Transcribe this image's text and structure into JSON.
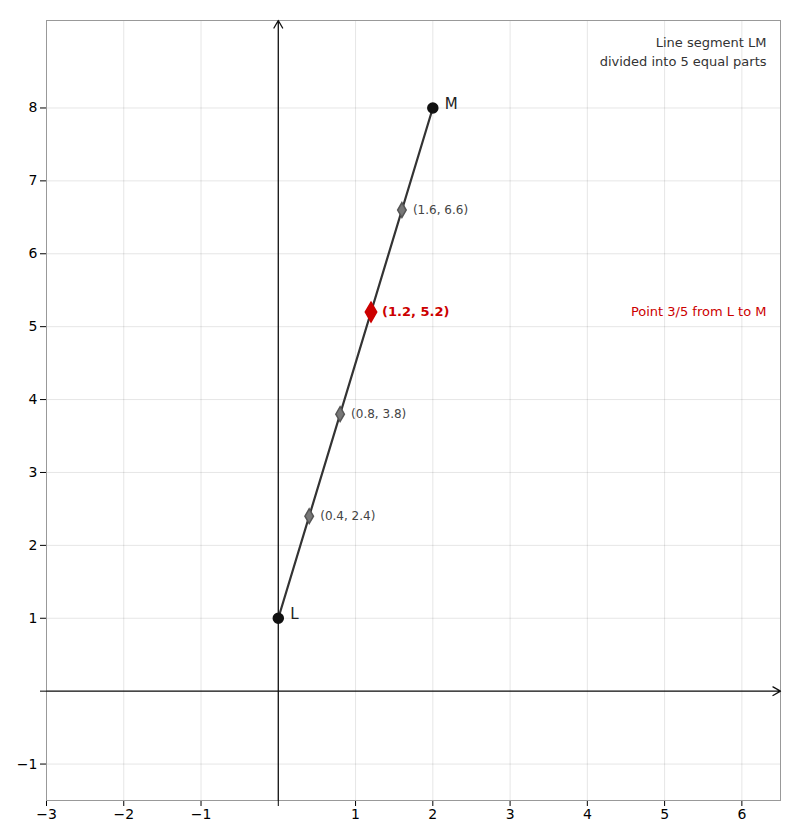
{
  "chart_data": {
    "type": "line",
    "segment": [
      {
        "label": "L",
        "x": 0,
        "y": 1,
        "color": "#111111"
      },
      {
        "label": "M",
        "x": 2,
        "y": 8,
        "color": "#111111"
      }
    ],
    "color": "#333333",
    "points": [
      {
        "x": 0.4,
        "y": 2.4,
        "label": "(0.4, 2.4)"
      },
      {
        "x": 0.8,
        "y": 3.8,
        "label": "(0.8, 3.8)"
      },
      {
        "x": 1.2,
        "y": 5.2,
        "label": "(1.2, 5.2)",
        "color": "#cc0000"
      },
      {
        "x": 1.6,
        "y": 6.6,
        "label": "(1.6, 6.6)"
      }
    ],
    "marker": "diamond",
    "annotations": [
      {
        "text": "Line segment LM"
      },
      {
        "text": "divided into 5 equal parts"
      },
      {
        "text": "Point 3/5 from L to M",
        "color": "#cc0000"
      }
    ],
    "xlim": [
      -3,
      6.5
    ],
    "ylim": [
      -1.5,
      9.2
    ],
    "xticks": [
      {
        "value": -3,
        "label": "−3"
      },
      {
        "value": -2,
        "label": "−2"
      },
      {
        "value": -1,
        "label": "−1"
      },
      {
        "value": 0,
        "label": null
      },
      1,
      2,
      3,
      4,
      5,
      6
    ],
    "yticks": [
      {
        "value": -1,
        "label": "−1"
      },
      {
        "value": 0,
        "label": null
      },
      1,
      2,
      3,
      4,
      5,
      6,
      7,
      8
    ],
    "grid": true
  }
}
